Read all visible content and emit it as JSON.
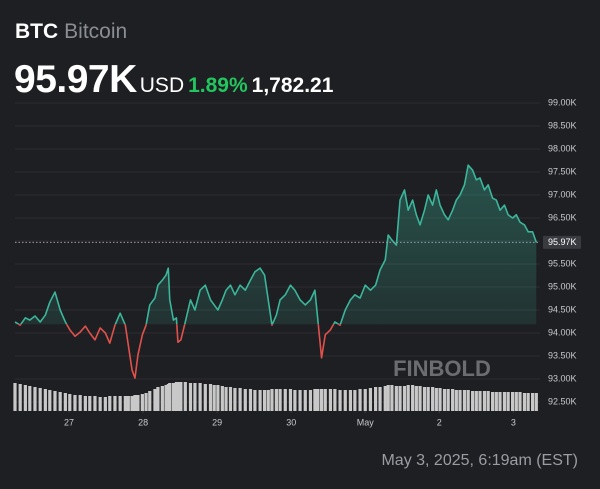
{
  "header": {
    "symbol": "BTC",
    "name": "Bitcoin",
    "price": "95.97K",
    "currency": "USD",
    "change_percent": "1.89%",
    "change": "1,782.21"
  },
  "footer": "May 3, 2025, 6:19am (EST)",
  "chart_data": {
    "type": "line",
    "watermark": "FINBOLD",
    "up_color": "#3bb59b",
    "down_color": "#e0514b",
    "volume_color": "#c8c8c8",
    "baseline": 94.19,
    "grid": true,
    "xlim": [
      26.27,
      33.36
    ],
    "ylim": [
      92.5,
      99.0
    ],
    "xticks": [
      27,
      28,
      29,
      30,
      {
        "value": 31,
        "label": "May"
      },
      {
        "value": 32,
        "label": "2"
      },
      {
        "value": 33,
        "label": "3"
      }
    ],
    "yticks": [
      {
        "value": 92.5,
        "label": "92.50K"
      },
      {
        "value": 93.0,
        "label": "93.00K"
      },
      {
        "value": 93.5,
        "label": "93.50K"
      },
      {
        "value": 94.0,
        "label": "94.00K"
      },
      {
        "value": 94.5,
        "label": "94.50K"
      },
      {
        "value": 95.0,
        "label": "95.00K"
      },
      {
        "value": 95.5,
        "label": "95.50K"
      },
      {
        "value": 96.0,
        "label": "96.00K"
      },
      {
        "value": 96.5,
        "label": "96.50K"
      },
      {
        "value": 97.0,
        "label": "97.00K"
      },
      {
        "value": 97.5,
        "label": "97.50K"
      },
      {
        "value": 98.0,
        "label": "98.00K"
      },
      {
        "value": 98.5,
        "label": "98.50K"
      },
      {
        "value": 99.0,
        "label": "99.00K"
      }
    ],
    "price_line": {
      "value": 95.97,
      "label": "95.97K"
    },
    "x": [
      26.27,
      26.34,
      26.41,
      26.47,
      26.54,
      26.61,
      26.68,
      26.74,
      26.81,
      26.88,
      26.95,
      27.01,
      27.08,
      27.15,
      27.22,
      27.28,
      27.35,
      27.42,
      27.49,
      27.55,
      27.62,
      27.69,
      27.76,
      27.8,
      27.85,
      27.89,
      27.93,
      27.99,
      28.04,
      28.09,
      28.16,
      28.2,
      28.26,
      28.31,
      28.34,
      28.36,
      28.41,
      28.45,
      28.47,
      28.51,
      28.57,
      28.64,
      28.7,
      28.77,
      28.84,
      28.91,
      28.96,
      29.01,
      29.07,
      29.12,
      29.18,
      29.24,
      29.31,
      29.38,
      29.45,
      29.51,
      29.58,
      29.64,
      29.69,
      29.74,
      29.8,
      29.85,
      29.92,
      29.99,
      30.05,
      30.12,
      30.19,
      30.26,
      30.32,
      30.36,
      30.41,
      30.46,
      30.53,
      30.59,
      30.66,
      30.73,
      30.8,
      30.86,
      30.93,
      31.0,
      31.07,
      31.14,
      31.2,
      31.27,
      31.31,
      31.36,
      31.42,
      31.47,
      31.53,
      31.58,
      31.64,
      31.69,
      31.74,
      31.8,
      31.85,
      31.91,
      31.96,
      32.01,
      32.07,
      32.12,
      32.18,
      32.23,
      32.28,
      32.34,
      32.39,
      32.45,
      32.5,
      32.55,
      32.61,
      32.66,
      32.72,
      32.77,
      32.82,
      32.88,
      32.93,
      32.99,
      33.04,
      33.09,
      33.15,
      33.2,
      33.26,
      33.31
    ],
    "values": [
      94.24,
      94.17,
      94.33,
      94.28,
      94.37,
      94.24,
      94.39,
      94.67,
      94.89,
      94.5,
      94.24,
      94.07,
      93.93,
      94.02,
      94.15,
      94.0,
      93.85,
      94.11,
      94.0,
      93.78,
      94.17,
      94.43,
      94.17,
      93.74,
      93.2,
      93.02,
      93.52,
      93.96,
      94.17,
      94.61,
      94.76,
      95.04,
      95.15,
      95.26,
      95.41,
      94.72,
      94.28,
      94.33,
      93.8,
      93.85,
      94.24,
      94.72,
      94.5,
      94.93,
      95.04,
      94.72,
      94.61,
      94.5,
      94.72,
      94.93,
      95.04,
      94.83,
      95.04,
      94.93,
      95.15,
      95.33,
      95.41,
      95.26,
      94.72,
      94.17,
      94.39,
      94.72,
      94.83,
      95.04,
      94.93,
      94.72,
      94.61,
      94.72,
      94.93,
      94.28,
      93.46,
      93.96,
      94.07,
      94.24,
      94.17,
      94.5,
      94.72,
      94.83,
      94.76,
      95.04,
      94.93,
      95.04,
      95.37,
      95.59,
      96.13,
      96.02,
      95.91,
      96.89,
      97.11,
      96.67,
      96.89,
      96.57,
      96.35,
      96.67,
      97.0,
      96.78,
      97.11,
      96.78,
      96.57,
      96.46,
      96.67,
      96.89,
      97.0,
      97.22,
      97.65,
      97.54,
      97.33,
      97.37,
      97.11,
      97.22,
      96.93,
      96.89,
      96.67,
      96.78,
      96.57,
      96.5,
      96.57,
      96.41,
      96.35,
      96.2,
      96.2,
      95.97
    ],
    "volume": [
      28,
      27,
      26,
      25,
      24,
      23,
      22,
      21,
      20,
      19,
      18,
      17,
      16,
      16,
      15,
      15,
      15,
      14,
      14,
      15,
      15,
      15,
      15,
      15,
      15,
      16,
      16,
      17,
      18,
      20,
      22,
      24,
      25,
      26,
      27,
      28,
      28,
      29,
      29,
      29,
      29,
      28,
      28,
      28,
      27,
      27,
      26,
      26,
      25,
      24,
      24,
      23,
      23,
      22,
      22,
      21,
      21,
      21,
      21,
      22,
      22,
      22,
      22,
      22,
      21,
      21,
      21,
      21,
      22,
      22,
      22,
      22,
      22,
      22,
      21,
      21,
      21,
      21,
      22,
      22,
      23,
      24,
      24,
      25,
      26,
      26,
      25,
      25,
      25,
      26,
      26,
      25,
      25,
      24,
      24,
      24,
      23,
      23,
      22,
      22,
      22,
      21,
      21,
      21,
      21,
      20,
      20,
      20,
      20,
      20,
      19,
      19,
      19,
      19,
      19,
      19,
      19,
      19,
      18,
      18,
      18,
      18
    ]
  }
}
